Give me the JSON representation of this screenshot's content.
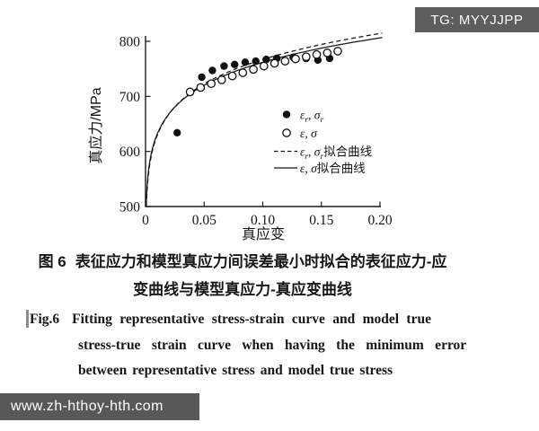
{
  "watermark_badge": {
    "label": "TG: MYYJJPP",
    "bg": "#5d5d5d",
    "fg": "#fdfdfd"
  },
  "footer_bar": {
    "label": "www.zh-hthoy-hth.com",
    "bg": "#585858",
    "fg": "#fdfdfd"
  },
  "figure": {
    "caption_zh": {
      "tag": "图 6",
      "line1_rest": "表征应力和模型真应力间误差最小时拟合的表征应力-应",
      "line2": "变曲线与模型真应力-真应变曲线"
    },
    "caption_en": {
      "tag": "Fig.6",
      "line1": "Fitting representative stress-strain curve and model true",
      "line2": "stress-true strain curve when having the minimum error",
      "line3": "between representative stress and model true stress"
    }
  },
  "chart_data": {
    "type": "scatter",
    "title": "",
    "xlabel": "真应变",
    "ylabel": "真应力/MPa",
    "xlim": [
      0,
      0.2
    ],
    "ylim": [
      500,
      800
    ],
    "grid": false,
    "legend_position": "center-right",
    "xticks": {
      "values": [
        0,
        0.05,
        0.1,
        0.15,
        0.2
      ],
      "labels": [
        "0",
        "0.05",
        "0.10",
        "0.15",
        "0.20"
      ]
    },
    "yticks": {
      "values": [
        500,
        600,
        700,
        800
      ],
      "labels": [
        "500",
        "600",
        "700",
        "800"
      ]
    },
    "axis_color": "#1b1b1b",
    "series": [
      {
        "id": "representative-points",
        "kind": "scatter",
        "marker": "filled-circle",
        "color": "#111111",
        "label_segments": [
          {
            "t": "ε",
            "italic": true
          },
          {
            "t": "r",
            "sub": true,
            "italic": true
          },
          {
            "t": ", ",
            "italic": false
          },
          {
            "t": "σ",
            "italic": true
          },
          {
            "t": "r",
            "sub": true,
            "italic": true
          }
        ],
        "points": [
          [
            0.027,
            634
          ],
          [
            0.048,
            735
          ],
          [
            0.057,
            747
          ],
          [
            0.067,
            755
          ],
          [
            0.076,
            758
          ],
          [
            0.085,
            762
          ],
          [
            0.094,
            764
          ],
          [
            0.103,
            767
          ],
          [
            0.112,
            769
          ],
          [
            0.126,
            771
          ],
          [
            0.137,
            769
          ],
          [
            0.147,
            766
          ],
          [
            0.157,
            769
          ]
        ]
      },
      {
        "id": "model-true-points",
        "kind": "scatter",
        "marker": "open-circle",
        "color": "#111111",
        "label_segments": [
          {
            "t": "ε",
            "italic": true
          },
          {
            "t": ", ",
            "italic": false
          },
          {
            "t": "σ",
            "italic": true
          }
        ],
        "points": [
          [
            0.038,
            708
          ],
          [
            0.047,
            716
          ],
          [
            0.056,
            723
          ],
          [
            0.065,
            730
          ],
          [
            0.074,
            737
          ],
          [
            0.083,
            743
          ],
          [
            0.092,
            749
          ],
          [
            0.101,
            755
          ],
          [
            0.11,
            760
          ],
          [
            0.119,
            764
          ],
          [
            0.128,
            768
          ],
          [
            0.137,
            772
          ],
          [
            0.146,
            776
          ],
          [
            0.155,
            779
          ],
          [
            0.164,
            782
          ]
        ]
      },
      {
        "id": "representative-fit-curve",
        "kind": "line",
        "style": "dashed",
        "color": "#161616",
        "label_segments": [
          {
            "t": "ε",
            "italic": true
          },
          {
            "t": "r",
            "sub": true,
            "italic": true
          },
          {
            "t": ", ",
            "italic": false
          },
          {
            "t": "σ",
            "italic": true
          },
          {
            "t": "r",
            "sub": true,
            "italic": true
          },
          {
            "t": "拟合曲线",
            "italic": false,
            "cjk": true
          }
        ],
        "fit": {
          "model": "power",
          "K": 935,
          "n": 0.086,
          "domain": [
            0.0007,
            0.202
          ]
        }
      },
      {
        "id": "model-fit-curve",
        "kind": "line",
        "style": "solid",
        "color": "#161616",
        "label_segments": [
          {
            "t": "ε",
            "italic": true
          },
          {
            "t": ", ",
            "italic": false
          },
          {
            "t": "σ",
            "italic": true
          },
          {
            "t": "拟合曲线",
            "italic": false,
            "cjk": true
          }
        ],
        "fit": {
          "model": "power",
          "K": 919,
          "n": 0.0814,
          "domain": [
            0.0006,
            0.202
          ]
        }
      }
    ]
  }
}
